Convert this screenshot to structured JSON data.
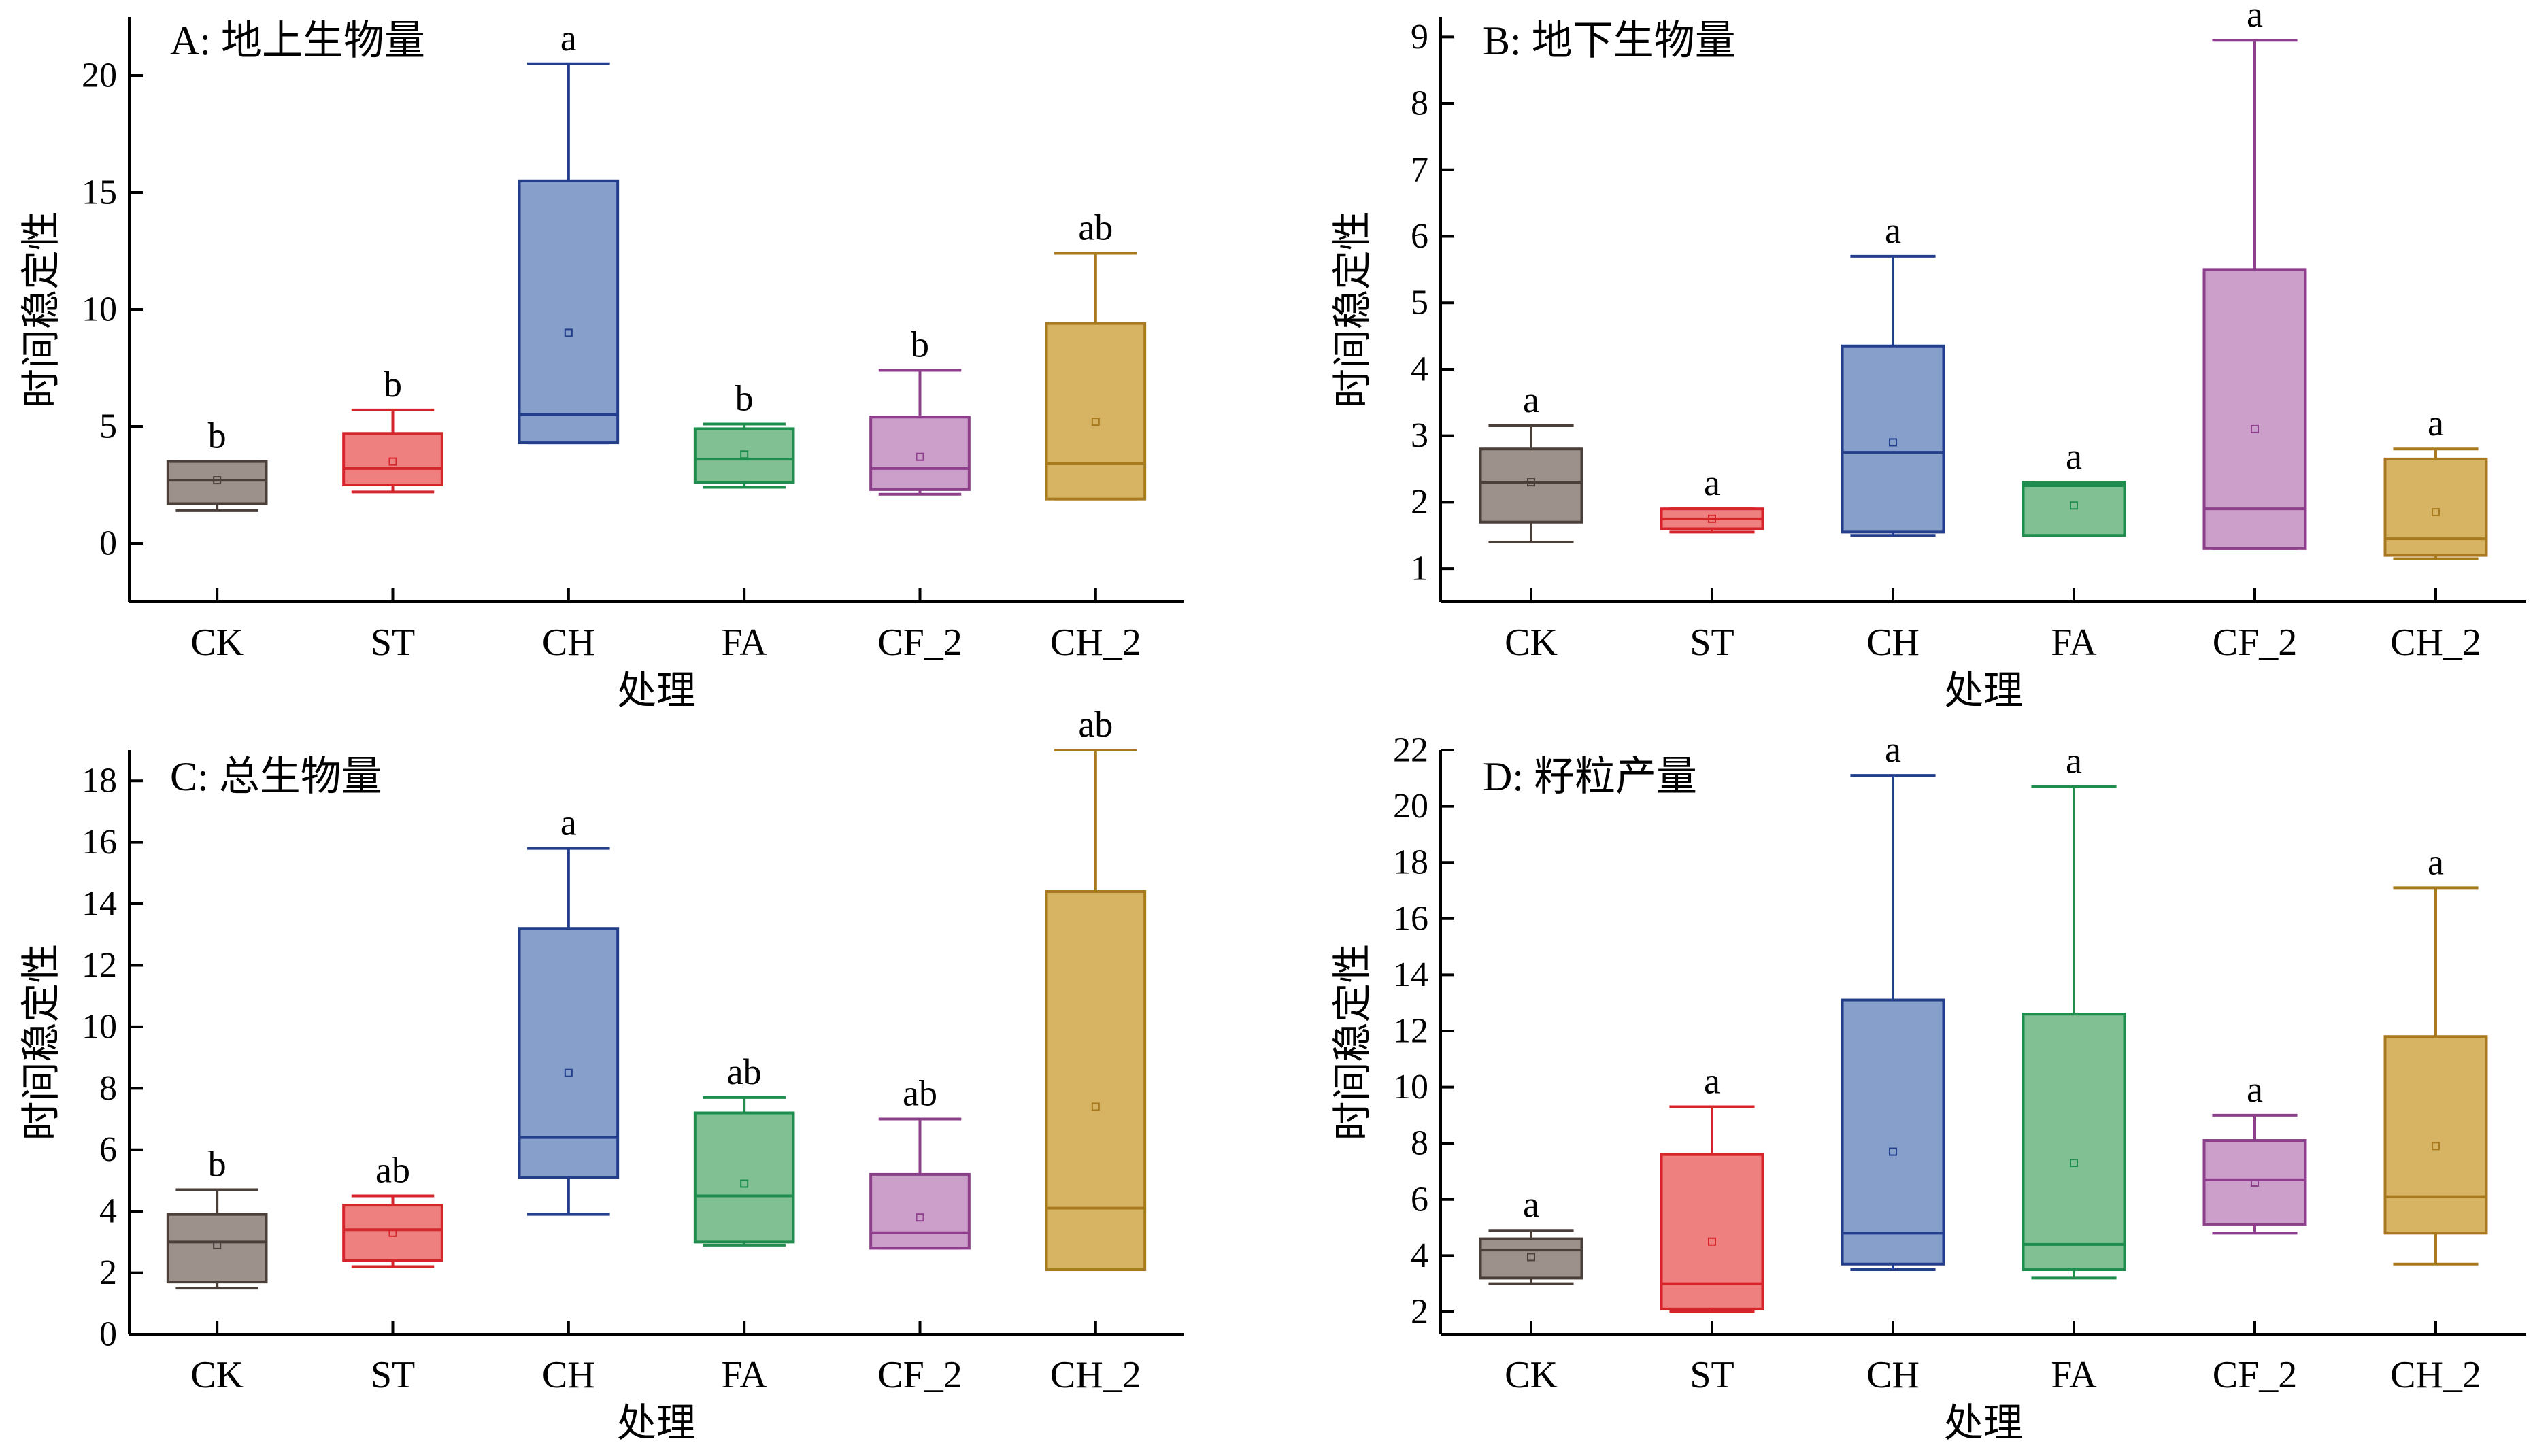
{
  "chart_data": [
    {
      "type": "box",
      "title": "A: 地上生物量",
      "xlabel": "处理",
      "ylabel": "时间稳定性",
      "categories": [
        "CK",
        "ST",
        "CH",
        "FA",
        "CF_2",
        "CH_2"
      ],
      "ylim": [
        -2.5,
        22.5
      ],
      "yticks": [
        0,
        5,
        10,
        15,
        20
      ],
      "boxes": [
        {
          "min": 1.4,
          "q1": 1.7,
          "median": 2.7,
          "q3": 3.5,
          "max": 3.5,
          "mean": 2.7,
          "sig": "b"
        },
        {
          "min": 2.2,
          "q1": 2.5,
          "median": 3.2,
          "q3": 4.7,
          "max": 5.7,
          "mean": 3.5,
          "sig": "b"
        },
        {
          "min": 4.3,
          "q1": 4.3,
          "median": 5.5,
          "q3": 15.5,
          "max": 20.5,
          "mean": 9.0,
          "sig": "a"
        },
        {
          "min": 2.4,
          "q1": 2.6,
          "median": 3.6,
          "q3": 4.9,
          "max": 5.1,
          "mean": 3.8,
          "sig": "b"
        },
        {
          "min": 2.1,
          "q1": 2.3,
          "median": 3.2,
          "q3": 5.4,
          "max": 7.4,
          "mean": 3.7,
          "sig": "b"
        },
        {
          "min": 1.9,
          "q1": 1.9,
          "median": 3.4,
          "q3": 9.4,
          "max": 12.4,
          "mean": 5.2,
          "sig": "ab"
        }
      ]
    },
    {
      "type": "box",
      "title": "B: 地下生物量",
      "xlabel": "处理",
      "ylabel": "时间稳定性",
      "categories": [
        "CK",
        "ST",
        "CH",
        "FA",
        "CF_2",
        "CH_2"
      ],
      "ylim": [
        0.5,
        9.3
      ],
      "yticks": [
        1,
        2,
        3,
        4,
        5,
        6,
        7,
        8,
        9
      ],
      "boxes": [
        {
          "min": 1.4,
          "q1": 1.7,
          "median": 2.3,
          "q3": 2.8,
          "max": 3.15,
          "mean": 2.3,
          "sig": "a"
        },
        {
          "min": 1.55,
          "q1": 1.6,
          "median": 1.75,
          "q3": 1.9,
          "max": 1.9,
          "mean": 1.75,
          "sig": "a"
        },
        {
          "min": 1.5,
          "q1": 1.55,
          "median": 2.75,
          "q3": 4.35,
          "max": 5.7,
          "mean": 2.9,
          "sig": "a"
        },
        {
          "min": 1.5,
          "q1": 1.5,
          "median": 2.25,
          "q3": 2.3,
          "max": 2.3,
          "mean": 1.95,
          "sig": "a"
        },
        {
          "min": 1.3,
          "q1": 1.3,
          "median": 1.9,
          "q3": 5.5,
          "max": 8.95,
          "mean": 3.1,
          "sig": "a"
        },
        {
          "min": 1.15,
          "q1": 1.2,
          "median": 1.45,
          "q3": 2.65,
          "max": 2.8,
          "mean": 1.85,
          "sig": "a"
        }
      ]
    },
    {
      "type": "box",
      "title": "C: 总生物量",
      "xlabel": "处理",
      "ylabel": "时间稳定性",
      "categories": [
        "CK",
        "ST",
        "CH",
        "FA",
        "CF_2",
        "CH_2"
      ],
      "ylim": [
        0,
        19
      ],
      "yticks": [
        0,
        2,
        4,
        6,
        8,
        10,
        12,
        14,
        16,
        18
      ],
      "boxes": [
        {
          "min": 1.5,
          "q1": 1.7,
          "median": 3.0,
          "q3": 3.9,
          "max": 4.7,
          "mean": 2.9,
          "sig": "b"
        },
        {
          "min": 2.2,
          "q1": 2.4,
          "median": 3.4,
          "q3": 4.2,
          "max": 4.5,
          "mean": 3.3,
          "sig": "ab"
        },
        {
          "min": 3.9,
          "q1": 5.1,
          "median": 6.4,
          "q3": 13.2,
          "max": 15.8,
          "mean": 8.5,
          "sig": "a"
        },
        {
          "min": 2.9,
          "q1": 3.0,
          "median": 4.5,
          "q3": 7.2,
          "max": 7.7,
          "mean": 4.9,
          "sig": "ab"
        },
        {
          "min": 2.8,
          "q1": 2.8,
          "median": 3.3,
          "q3": 5.2,
          "max": 7.0,
          "mean": 3.8,
          "sig": "ab"
        },
        {
          "min": 2.1,
          "q1": 2.1,
          "median": 4.1,
          "q3": 14.4,
          "max": 19.0,
          "mean": 7.4,
          "sig": "ab"
        }
      ]
    },
    {
      "type": "box",
      "title": "D: 籽粒产量",
      "xlabel": "处理",
      "ylabel": "时间稳定性",
      "categories": [
        "CK",
        "ST",
        "CH",
        "FA",
        "CF_2",
        "CH_2"
      ],
      "ylim": [
        1.2,
        22
      ],
      "yticks": [
        2,
        4,
        6,
        8,
        10,
        12,
        14,
        16,
        18,
        20,
        22
      ],
      "boxes": [
        {
          "min": 3.0,
          "q1": 3.2,
          "median": 4.2,
          "q3": 4.6,
          "max": 4.9,
          "mean": 3.95,
          "sig": "a"
        },
        {
          "min": 2.0,
          "q1": 2.1,
          "median": 3.0,
          "q3": 7.6,
          "max": 9.3,
          "mean": 4.5,
          "sig": "a"
        },
        {
          "min": 3.5,
          "q1": 3.7,
          "median": 4.8,
          "q3": 13.1,
          "max": 21.1,
          "mean": 7.7,
          "sig": "a"
        },
        {
          "min": 3.2,
          "q1": 3.5,
          "median": 4.4,
          "q3": 12.6,
          "max": 20.7,
          "mean": 7.3,
          "sig": "a"
        },
        {
          "min": 4.8,
          "q1": 5.1,
          "median": 6.7,
          "q3": 8.1,
          "max": 9.0,
          "mean": 6.6,
          "sig": "a"
        },
        {
          "min": 3.7,
          "q1": 4.8,
          "median": 6.1,
          "q3": 11.8,
          "max": 17.1,
          "mean": 7.9,
          "sig": "a"
        }
      ]
    }
  ],
  "colors": {
    "fills": [
      "#9d918b",
      "#ef8080",
      "#869fcb",
      "#81c093",
      "#cc9fca",
      "#d6b464"
    ],
    "lines": [
      "#4b3f3a",
      "#d6242b",
      "#233e8b",
      "#1e8d4d",
      "#8d3f8c",
      "#a87a1d"
    ]
  }
}
